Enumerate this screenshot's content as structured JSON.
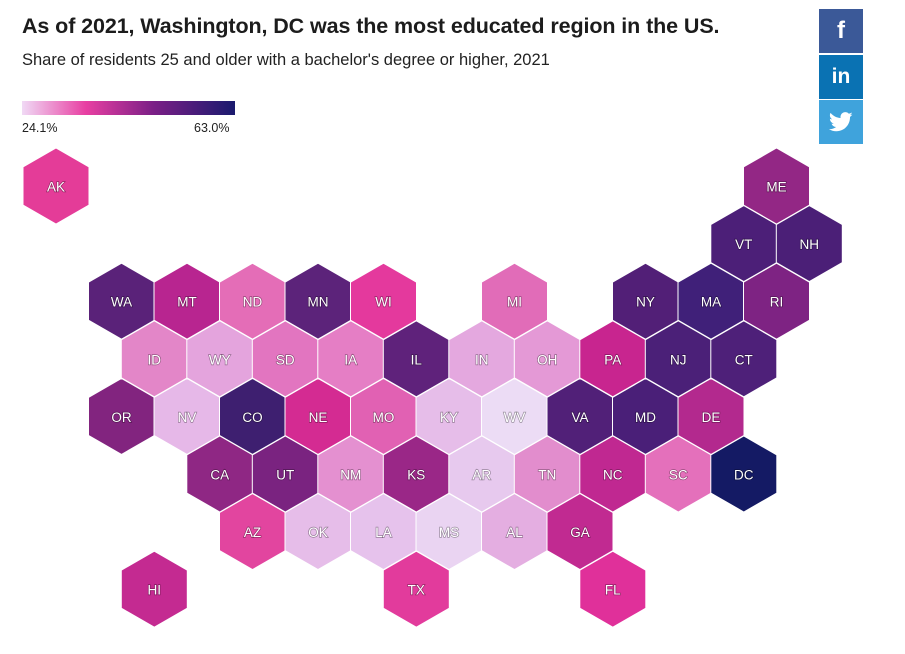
{
  "title": "As of 2021, Washington, DC was the most educated region in the US.",
  "subtitle": "Share of residents 25 and older with a bachelor's degree or higher, 2021",
  "legend": {
    "min_label": "24.1%",
    "max_label": "63.0%",
    "colors": [
      "#f0d9f5",
      "#e83fa2",
      "#7a1f86",
      "#1a1a6e"
    ]
  },
  "share": {
    "facebook": "f",
    "linkedin": "in",
    "twitter_icon": "twitter-bird-icon"
  },
  "chart_data": {
    "type": "heatmap",
    "layout": "hex-tile-map",
    "states": [
      {
        "abbr": "AK",
        "row": 0,
        "col": 0,
        "color": "#e43c98"
      },
      {
        "abbr": "ME",
        "row": 0,
        "col": 11,
        "color": "#932785"
      },
      {
        "abbr": "VT",
        "row": 1,
        "col": 10,
        "color": "#4c1f78"
      },
      {
        "abbr": "NH",
        "row": 1,
        "col": 11,
        "color": "#4b1f77"
      },
      {
        "abbr": "WA",
        "row": 2,
        "col": 1,
        "color": "#5a2279"
      },
      {
        "abbr": "MT",
        "row": 2,
        "col": 2,
        "color": "#b82590"
      },
      {
        "abbr": "ND",
        "row": 2,
        "col": 3,
        "color": "#e46db7"
      },
      {
        "abbr": "MN",
        "row": 2,
        "col": 4,
        "color": "#5c237a"
      },
      {
        "abbr": "WI",
        "row": 2,
        "col": 5,
        "color": "#e4399d"
      },
      {
        "abbr": "MI",
        "row": 2,
        "col": 7,
        "color": "#e16cb8"
      },
      {
        "abbr": "NY",
        "row": 2,
        "col": 9,
        "color": "#521f77"
      },
      {
        "abbr": "MA",
        "row": 2,
        "col": 10,
        "color": "#402079"
      },
      {
        "abbr": "RI",
        "row": 2,
        "col": 11,
        "color": "#7e2383"
      },
      {
        "abbr": "ID",
        "row": 3,
        "col": 1,
        "color": "#e386c8"
      },
      {
        "abbr": "WY",
        "row": 3,
        "col": 2,
        "color": "#e4a4dd"
      },
      {
        "abbr": "SD",
        "row": 3,
        "col": 3,
        "color": "#e275c0"
      },
      {
        "abbr": "IA",
        "row": 3,
        "col": 4,
        "color": "#e57ec5"
      },
      {
        "abbr": "IL",
        "row": 3,
        "col": 5,
        "color": "#5f227b"
      },
      {
        "abbr": "IN",
        "row": 3,
        "col": 6,
        "color": "#e4a8df"
      },
      {
        "abbr": "OH",
        "row": 3,
        "col": 7,
        "color": "#e499d6"
      },
      {
        "abbr": "PA",
        "row": 3,
        "col": 8,
        "color": "#c8258f"
      },
      {
        "abbr": "NJ",
        "row": 3,
        "col": 9,
        "color": "#4b2078"
      },
      {
        "abbr": "CT",
        "row": 3,
        "col": 10,
        "color": "#4e2079"
      },
      {
        "abbr": "OR",
        "row": 4,
        "col": 1,
        "color": "#82247f"
      },
      {
        "abbr": "NV",
        "row": 4,
        "col": 2,
        "color": "#e6b8e8"
      },
      {
        "abbr": "CO",
        "row": 4,
        "col": 3,
        "color": "#3e1f70"
      },
      {
        "abbr": "NE",
        "row": 4,
        "col": 4,
        "color": "#d42b92"
      },
      {
        "abbr": "MO",
        "row": 4,
        "col": 5,
        "color": "#e161b3"
      },
      {
        "abbr": "KY",
        "row": 4,
        "col": 6,
        "color": "#e6bde9"
      },
      {
        "abbr": "WV",
        "row": 4,
        "col": 7,
        "color": "#ecdcf5"
      },
      {
        "abbr": "VA",
        "row": 4,
        "col": 8,
        "color": "#512078"
      },
      {
        "abbr": "MD",
        "row": 4,
        "col": 9,
        "color": "#4a1f78"
      },
      {
        "abbr": "DE",
        "row": 4,
        "col": 10,
        "color": "#b3298e"
      },
      {
        "abbr": "CA",
        "row": 5,
        "col": 2,
        "color": "#8f2784"
      },
      {
        "abbr": "UT",
        "row": 5,
        "col": 3,
        "color": "#7a2380"
      },
      {
        "abbr": "NM",
        "row": 5,
        "col": 4,
        "color": "#e490d0"
      },
      {
        "abbr": "KS",
        "row": 5,
        "col": 5,
        "color": "#9a2787"
      },
      {
        "abbr": "AR",
        "row": 5,
        "col": 6,
        "color": "#e7c9ee"
      },
      {
        "abbr": "TN",
        "row": 5,
        "col": 7,
        "color": "#e28dcd"
      },
      {
        "abbr": "NC",
        "row": 5,
        "col": 8,
        "color": "#c02891"
      },
      {
        "abbr": "SC",
        "row": 5,
        "col": 9,
        "color": "#e470bb"
      },
      {
        "abbr": "DC",
        "row": 5,
        "col": 10,
        "color": "#141a64"
      },
      {
        "abbr": "AZ",
        "row": 6,
        "col": 3,
        "color": "#e2459f"
      },
      {
        "abbr": "OK",
        "row": 6,
        "col": 4,
        "color": "#e6bde9"
      },
      {
        "abbr": "LA",
        "row": 6,
        "col": 5,
        "color": "#e6c2ec"
      },
      {
        "abbr": "MS",
        "row": 6,
        "col": 6,
        "color": "#ead4f2"
      },
      {
        "abbr": "AL",
        "row": 6,
        "col": 7,
        "color": "#e4aee1"
      },
      {
        "abbr": "GA",
        "row": 6,
        "col": 8,
        "color": "#c12a91"
      },
      {
        "abbr": "HI",
        "row": 7,
        "col": 1,
        "color": "#c42a91"
      },
      {
        "abbr": "TX",
        "row": 7,
        "col": 5,
        "color": "#e23b9c"
      },
      {
        "abbr": "FL",
        "row": 7,
        "col": 8,
        "color": "#e0309a"
      }
    ]
  }
}
